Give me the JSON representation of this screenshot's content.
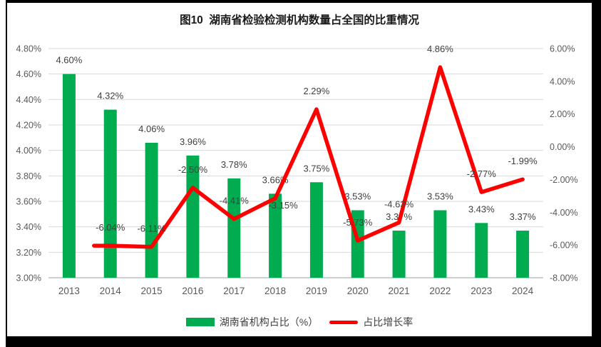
{
  "chart_data": {
    "type": "bar+line",
    "title": "图10  湖南省检验检测机构数量占全国的比重情况",
    "categories": [
      "2013",
      "2014",
      "2015",
      "2016",
      "2017",
      "2018",
      "2019",
      "2020",
      "2021",
      "2022",
      "2023",
      "2024"
    ],
    "series": [
      {
        "name": "湖南省机构占比（%）",
        "type": "bar",
        "axis": "left",
        "values": [
          4.6,
          4.32,
          4.06,
          3.96,
          3.78,
          3.66,
          3.75,
          3.53,
          3.37,
          3.53,
          3.43,
          3.37
        ],
        "labels": [
          "4.60%",
          "4.32%",
          "4.06%",
          "3.96%",
          "3.78%",
          "3.66%",
          "3.75%",
          "3.53%",
          "3.37%",
          "3.53%",
          "3.43%",
          "3.37%"
        ]
      },
      {
        "name": "占比增长率",
        "type": "line",
        "axis": "right",
        "values": [
          null,
          -6.04,
          -6.11,
          -2.5,
          -4.41,
          -3.15,
          2.29,
          -5.73,
          -4.63,
          4.86,
          -2.77,
          -1.99
        ],
        "labels": [
          null,
          "-6.04%",
          "-6.11%",
          "-2.50%",
          "-4.41%",
          "-3.15%",
          "2.29%",
          "-5.73%",
          "-4.63%",
          "4.86%",
          "-2.77%",
          "-1.99%"
        ]
      }
    ],
    "left_axis": {
      "min": 3.0,
      "max": 4.8,
      "step": 0.2,
      "tick_labels": [
        "3.00%",
        "3.20%",
        "3.40%",
        "3.60%",
        "3.80%",
        "4.00%",
        "4.20%",
        "4.40%",
        "4.60%",
        "4.80%"
      ]
    },
    "right_axis": {
      "min": -8.0,
      "max": 6.0,
      "step": 2.0,
      "tick_labels": [
        "-8.00%",
        "-6.00%",
        "-4.00%",
        "-2.00%",
        "0.00%",
        "2.00%",
        "4.00%",
        "6.00%"
      ]
    },
    "grid": "horizontal",
    "legend": {
      "position": "bottom-center",
      "entries": [
        "湖南省机构占比（%）",
        "占比增长率"
      ]
    },
    "layout_hints": {
      "line_label_position": {
        "2018": "below-right"
      }
    },
    "colors": {
      "bar": "#00AC4F",
      "line": "#FE0000",
      "gridline": "#D9D9D9",
      "axis_line": "#BFBFBF",
      "axis_text": "#595959",
      "label_text": "#404040",
      "title_text": "#1A1A1A",
      "frame": "#000000"
    }
  }
}
